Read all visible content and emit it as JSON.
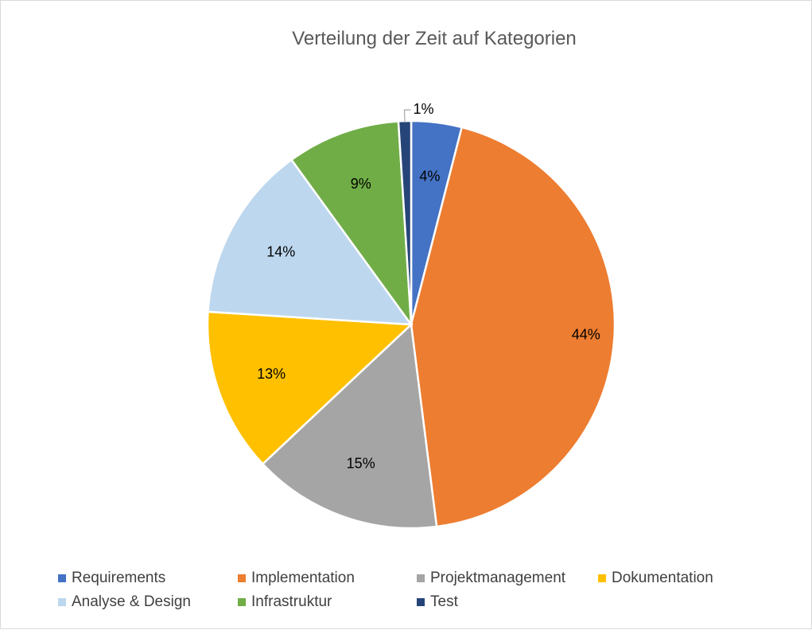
{
  "chart_data": {
    "type": "pie",
    "title": "Verteilung der Zeit auf Kategorien",
    "categories": [
      "Requirements",
      "Implementation",
      "Projektmanagement",
      "Dokumentation",
      "Analyse & Design",
      "Infrastruktur",
      "Test"
    ],
    "values": [
      4,
      44,
      15,
      13,
      14,
      9,
      1
    ],
    "labels": [
      "4%",
      "44%",
      "15%",
      "13%",
      "14%",
      "9%",
      "1%"
    ],
    "colors": [
      "#4472C4",
      "#ED7D31",
      "#A5A5A5",
      "#FFC000",
      "#BDD7EE",
      "#70AD47",
      "#264478"
    ],
    "legend_position": "bottom"
  }
}
